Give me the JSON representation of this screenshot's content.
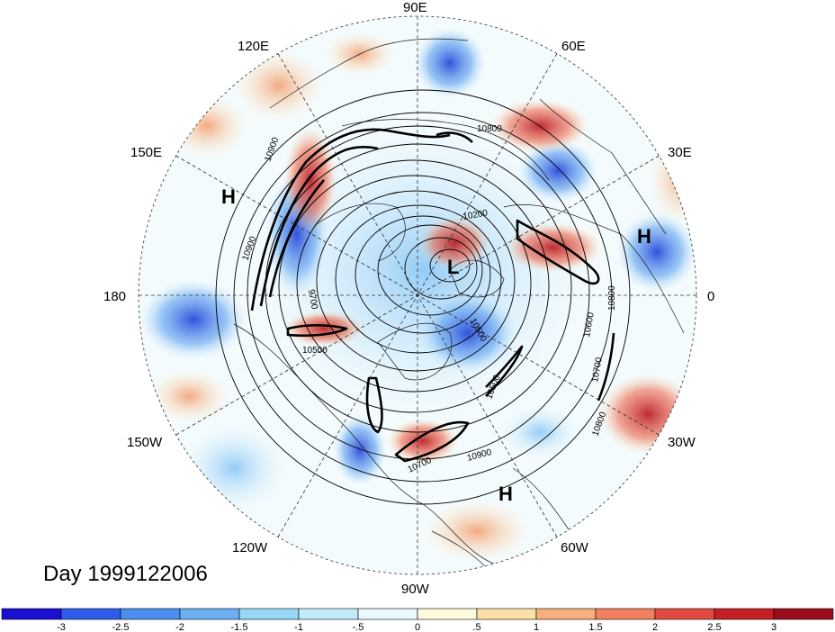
{
  "title": "Day 1999122006",
  "longitude_labels": [
    "90E",
    "60E",
    "30E",
    "0",
    "30W",
    "60W",
    "90W",
    "120W",
    "150W",
    "180",
    "150E",
    "120E"
  ],
  "pressure_systems": [
    {
      "type": "H",
      "label": "H"
    },
    {
      "type": "H",
      "label": "H"
    },
    {
      "type": "H",
      "label": "H"
    },
    {
      "type": "L",
      "label": "L"
    }
  ],
  "contour_labels": [
    "10800",
    "10200",
    "9700",
    "10500",
    "10900",
    "10600",
    "10800",
    "10700",
    "10800",
    "10900",
    "10500",
    "10500",
    "10900",
    "10700"
  ],
  "colorbar": {
    "ticks": [
      "-3",
      "-2.5",
      "-2",
      "-1.5",
      "-1",
      "-.5",
      "0",
      ".5",
      "1",
      "1.5",
      "2",
      "2.5",
      "3"
    ],
    "colors": [
      "#1a0fd0",
      "#2e5bea",
      "#4a8ef0",
      "#6cb0f4",
      "#97d6f7",
      "#c3ecfa",
      "#e8f8fd",
      "#fdfbdc",
      "#fce0a8",
      "#f6b07c",
      "#f0805e",
      "#e24a40",
      "#c42024",
      "#9c0d1c"
    ]
  },
  "map_style": {
    "projection": "north polar stereographic",
    "grid": "dashed meridians every 30 degrees",
    "contour_color": "#000000"
  }
}
